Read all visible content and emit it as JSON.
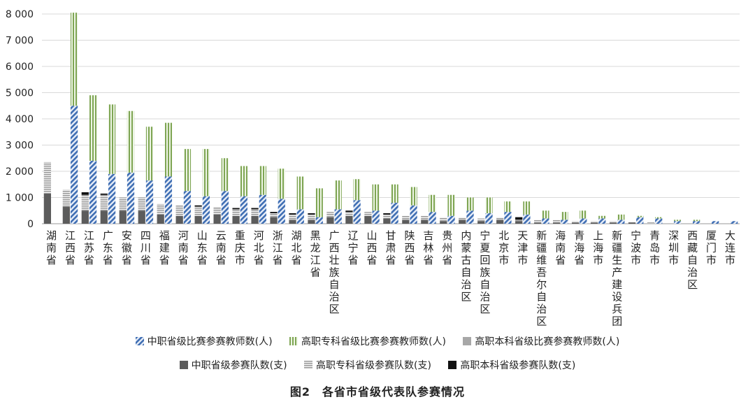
{
  "chart_data": {
    "type": "bar",
    "y_ticks": [
      "0",
      "1 000",
      "2 000",
      "3 000",
      "4 000",
      "5 000",
      "6 000",
      "7 000",
      "8 000"
    ],
    "ylim": [
      0,
      8000
    ],
    "grid": true,
    "legend_position": "bottom",
    "categories": [
      "湖南省",
      "江西省",
      "江苏省",
      "广东省",
      "安徽省",
      "四川省",
      "福建省",
      "河南省",
      "山东省",
      "云南省",
      "重庆市",
      "河北省",
      "浙江省",
      "湖北省",
      "黑龙江省",
      "广西壮族自治区",
      "辽宁省",
      "山西省",
      "甘肃省",
      "陕西省",
      "吉林省",
      "贵州省",
      "内蒙古自治区",
      "宁夏回族自治区",
      "北京市",
      "天津市",
      "新疆维吾尔自治区",
      "海南省",
      "青海省",
      "上海市",
      "新疆生产建设兵团",
      "宁波市",
      "青岛市",
      "深圳市",
      "西藏自治区",
      "厦门市",
      "大连市"
    ],
    "series": [
      {
        "name": "中职省级比赛参赛教师数(人)",
        "group": "teachers",
        "pattern": "hatch-blue",
        "color": "#4f7fbf",
        "values": [
          0,
          4500,
          2400,
          1900,
          1950,
          1650,
          1800,
          1250,
          1050,
          1250,
          1050,
          1100,
          950,
          550,
          250,
          550,
          900,
          500,
          800,
          700,
          450,
          300,
          500,
          400,
          450,
          350,
          200,
          150,
          200,
          200,
          150,
          250,
          200,
          100,
          100,
          100,
          100
        ]
      },
      {
        "name": "高职专科省级比赛参赛教师数(人)",
        "group": "teachers",
        "pattern": "stripe-green",
        "color": "#8bb063",
        "values": [
          0,
          3550,
          2500,
          2650,
          2350,
          2050,
          2050,
          1600,
          1800,
          1250,
          1150,
          1100,
          1150,
          1250,
          1100,
          1100,
          800,
          1000,
          700,
          700,
          650,
          800,
          500,
          600,
          400,
          500,
          300,
          300,
          300,
          100,
          200,
          50,
          50,
          50,
          50,
          0,
          0
        ]
      },
      {
        "name": "高职本科省级比赛参赛教师数(人)",
        "group": "teachers",
        "pattern": "solid-gray",
        "color": "#a7a7a7",
        "values": [
          0,
          0,
          0,
          0,
          0,
          0,
          0,
          0,
          0,
          0,
          0,
          0,
          0,
          0,
          0,
          0,
          0,
          0,
          0,
          0,
          0,
          0,
          0,
          0,
          0,
          0,
          0,
          0,
          0,
          0,
          0,
          0,
          0,
          0,
          0,
          0,
          0
        ]
      },
      {
        "name": "中职省级参赛队数(支)",
        "group": "teams",
        "pattern": "solid-dark",
        "color": "#5c5c5c",
        "values": [
          1150,
          650,
          500,
          500,
          500,
          500,
          350,
          300,
          300,
          350,
          300,
          300,
          250,
          150,
          150,
          250,
          300,
          300,
          200,
          150,
          150,
          100,
          150,
          100,
          150,
          100,
          50,
          50,
          50,
          50,
          50,
          50,
          0,
          0,
          0,
          0,
          0
        ]
      },
      {
        "name": "高职专科省级参赛队数(支)",
        "group": "teams",
        "pattern": "stripe-gray",
        "color": "#bdbdbd",
        "values": [
          1200,
          650,
          600,
          600,
          500,
          500,
          400,
          400,
          350,
          300,
          250,
          250,
          150,
          200,
          200,
          200,
          150,
          150,
          150,
          150,
          150,
          150,
          100,
          100,
          100,
          50,
          100,
          100,
          50,
          50,
          50,
          0,
          50,
          0,
          0,
          0,
          0
        ]
      },
      {
        "name": "高职本科省级参赛队数(支)",
        "group": "teams",
        "pattern": "solid-black",
        "color": "#111111",
        "values": [
          0,
          0,
          100,
          50,
          0,
          0,
          0,
          0,
          50,
          0,
          50,
          50,
          50,
          50,
          50,
          0,
          50,
          0,
          50,
          0,
          0,
          0,
          0,
          0,
          0,
          100,
          0,
          0,
          0,
          0,
          0,
          0,
          0,
          0,
          0,
          0,
          0
        ]
      }
    ]
  },
  "legend": {
    "row1": [
      "中职省级比赛参赛教师数(人)",
      "高职专科省级比赛参赛教师数(人)",
      "高职本科省级比赛参赛教师数(人)"
    ],
    "row2": [
      "中职省级参赛队数(支)",
      "高职专科省级参赛队数(支)",
      "高职本科省级参赛队数(支)"
    ]
  },
  "caption": "图2　各省市省级代表队参赛情况"
}
